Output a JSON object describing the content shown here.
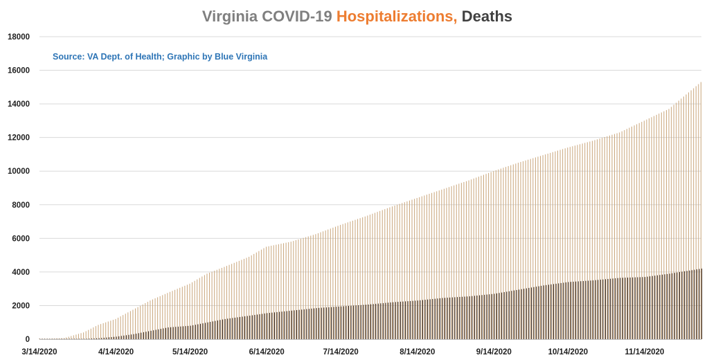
{
  "chart_data": {
    "type": "bar",
    "title": {
      "part1": "Virginia COVID-19 ",
      "part2": "Hospitalizations,",
      "part3": " Deaths"
    },
    "annotation": "Source: VA Dept. of Health; Graphic by Blue Virginia",
    "colors": {
      "title_part1": "#7f7f7f",
      "title_part2": "#ed7d31",
      "title_part3": "#404040",
      "annotation": "#2e75b6",
      "hospitalizations": "#c9a57a",
      "deaths": "#2b1d16",
      "grid": "#d9d9d9"
    },
    "ylim": [
      0,
      18000
    ],
    "yticks": [
      "0",
      "2000",
      "4000",
      "6000",
      "8000",
      "10000",
      "12000",
      "14000",
      "16000",
      "18000"
    ],
    "xticks": [
      "3/14/2020",
      "4/14/2020",
      "5/14/2020",
      "6/14/2020",
      "7/14/2020",
      "8/14/2020",
      "9/14/2020",
      "10/14/2020",
      "11/14/2020"
    ],
    "grid": true,
    "x_range": [
      "2020-03-14",
      "2020-12-07"
    ],
    "series": [
      {
        "name": "Hospitalizations",
        "x": [
          "2020-03-14",
          "2020-03-24",
          "2020-04-01",
          "2020-04-07",
          "2020-04-14",
          "2020-04-21",
          "2020-04-28",
          "2020-05-05",
          "2020-05-14",
          "2020-05-21",
          "2020-05-28",
          "2020-06-07",
          "2020-06-14",
          "2020-06-24",
          "2020-07-04",
          "2020-07-14",
          "2020-07-24",
          "2020-08-04",
          "2020-08-14",
          "2020-08-24",
          "2020-09-04",
          "2020-09-14",
          "2020-09-24",
          "2020-10-04",
          "2020-10-14",
          "2020-10-24",
          "2020-11-04",
          "2020-11-14",
          "2020-11-24",
          "2020-12-07"
        ],
        "values": [
          0,
          60,
          400,
          850,
          1200,
          1750,
          2300,
          2750,
          3300,
          3900,
          4300,
          4900,
          5500,
          5800,
          6250,
          6800,
          7300,
          7900,
          8400,
          8900,
          9450,
          10000,
          10500,
          10950,
          11400,
          11800,
          12300,
          13000,
          13700,
          15300
        ]
      },
      {
        "name": "Deaths",
        "x": [
          "2020-03-14",
          "2020-03-24",
          "2020-04-01",
          "2020-04-07",
          "2020-04-14",
          "2020-04-21",
          "2020-04-28",
          "2020-05-05",
          "2020-05-14",
          "2020-05-21",
          "2020-05-28",
          "2020-06-07",
          "2020-06-14",
          "2020-06-24",
          "2020-07-04",
          "2020-07-14",
          "2020-07-24",
          "2020-08-04",
          "2020-08-14",
          "2020-08-24",
          "2020-09-04",
          "2020-09-14",
          "2020-09-24",
          "2020-10-04",
          "2020-10-14",
          "2020-10-24",
          "2020-11-04",
          "2020-11-14",
          "2020-11-24",
          "2020-12-07"
        ],
        "values": [
          0,
          5,
          20,
          60,
          150,
          300,
          500,
          700,
          800,
          1000,
          1200,
          1400,
          1550,
          1700,
          1850,
          1950,
          2050,
          2200,
          2300,
          2450,
          2550,
          2700,
          2950,
          3200,
          3400,
          3500,
          3650,
          3700,
          3900,
          4200
        ]
      }
    ]
  }
}
